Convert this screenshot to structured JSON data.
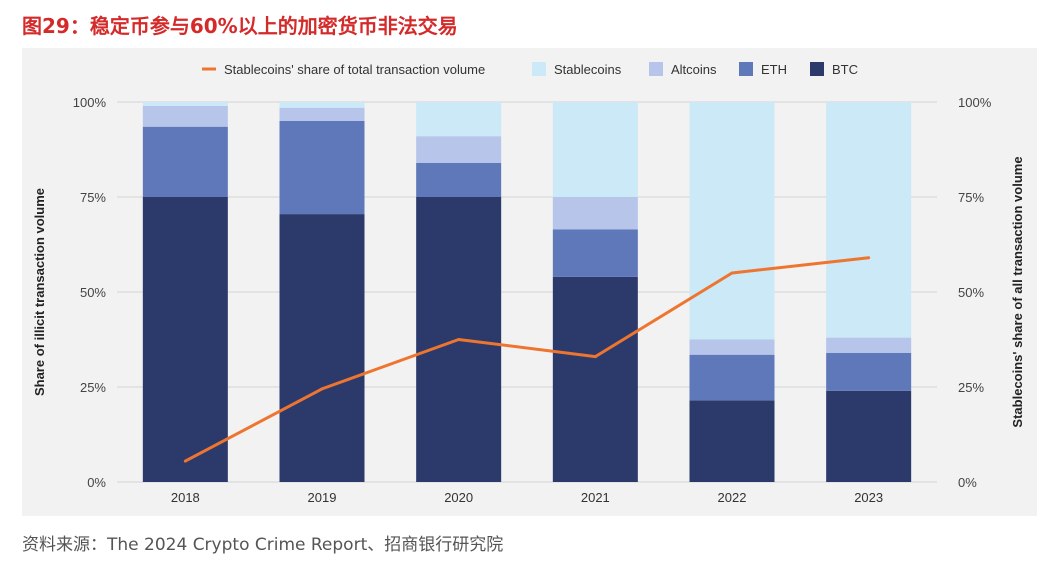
{
  "title": "图29：稳定币参与60%以上的加密货币非法交易",
  "source": "资料来源：The 2024 Crypto Crime Report、招商银行研究院",
  "chart_data": {
    "type": "bar",
    "stacked": true,
    "categories": [
      "2018",
      "2019",
      "2020",
      "2021",
      "2022",
      "2023"
    ],
    "series": [
      {
        "name": "BTC",
        "color": "#2b3a6b",
        "values": [
          75,
          70.5,
          75,
          54,
          21.5,
          24
        ]
      },
      {
        "name": "ETH",
        "color": "#5f78b9",
        "values": [
          18.5,
          24.5,
          9,
          12.5,
          12,
          10
        ]
      },
      {
        "name": "Altcoins",
        "color": "#b7c5ea",
        "values": [
          5.5,
          3.5,
          7,
          8.5,
          4,
          4
        ]
      },
      {
        "name": "Stablecoins",
        "color": "#cbe9f7",
        "values": [
          1,
          1.5,
          9,
          25,
          62.5,
          62
        ]
      }
    ],
    "line_series": {
      "name": "Stablecoins' share of total transaction volume",
      "color": "#ee7530",
      "axis": "right",
      "values": [
        5.5,
        24.5,
        37.5,
        33,
        55,
        59
      ]
    },
    "ylabel": "Share of illicit transaction volume",
    "y2label": "Stablecoins' share of all transaction volume",
    "ylim": [
      0,
      100
    ],
    "y2lim": [
      0,
      100
    ],
    "yticks": [
      "0%",
      "25%",
      "50%",
      "75%",
      "100%"
    ],
    "y2ticks": [
      "0%",
      "25%",
      "50%",
      "75%",
      "100%"
    ],
    "legend_position": "top-center",
    "grid": true
  }
}
